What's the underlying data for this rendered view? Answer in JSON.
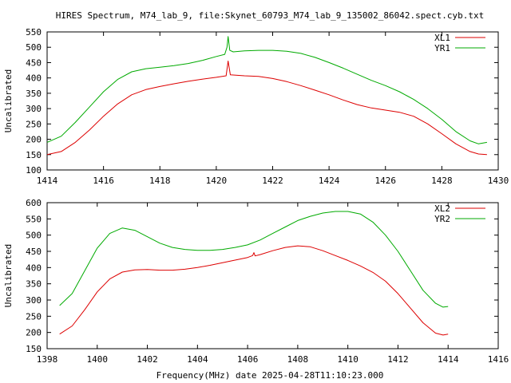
{
  "title": "HIRES Spectrum, M74_lab_9, file:Skynet_60793_M74_lab_9_135002_86042.spect.cyb.txt",
  "xlabel_bottom": "Frequency(MHz) date 2025-04-28T11:10:23.000",
  "colors": {
    "red": "#dd0000",
    "green": "#00aa00",
    "axis": "#000000"
  },
  "chart_data": [
    {
      "type": "line",
      "ylabel": "Uncalibrated",
      "xlim": [
        1414,
        1430
      ],
      "ylim": [
        100,
        550
      ],
      "xticks": [
        1414,
        1416,
        1418,
        1420,
        1422,
        1424,
        1426,
        1428,
        1430
      ],
      "yticks": [
        100,
        150,
        200,
        250,
        300,
        350,
        400,
        450,
        500,
        550
      ],
      "legend": "top-right",
      "series": [
        {
          "name": "XL1",
          "color": "#dd0000",
          "points": [
            [
              1414.0,
              150
            ],
            [
              1414.5,
              160
            ],
            [
              1415.0,
              190
            ],
            [
              1415.5,
              230
            ],
            [
              1416.0,
              275
            ],
            [
              1416.5,
              315
            ],
            [
              1417.0,
              345
            ],
            [
              1417.5,
              362
            ],
            [
              1418.0,
              372
            ],
            [
              1418.5,
              381
            ],
            [
              1419.0,
              389
            ],
            [
              1419.5,
              396
            ],
            [
              1420.0,
              402
            ],
            [
              1420.35,
              407
            ],
            [
              1420.42,
              455
            ],
            [
              1420.5,
              410
            ],
            [
              1421.0,
              407
            ],
            [
              1421.5,
              405
            ],
            [
              1422.0,
              398
            ],
            [
              1422.5,
              388
            ],
            [
              1423.0,
              375
            ],
            [
              1423.5,
              360
            ],
            [
              1424.0,
              345
            ],
            [
              1424.5,
              328
            ],
            [
              1425.0,
              313
            ],
            [
              1425.5,
              302
            ],
            [
              1426.0,
              295
            ],
            [
              1426.5,
              288
            ],
            [
              1427.0,
              275
            ],
            [
              1427.5,
              250
            ],
            [
              1428.0,
              218
            ],
            [
              1428.5,
              185
            ],
            [
              1429.0,
              160
            ],
            [
              1429.3,
              152
            ],
            [
              1429.6,
              150
            ]
          ]
        },
        {
          "name": "YR1",
          "color": "#00aa00",
          "points": [
            [
              1414.0,
              190
            ],
            [
              1414.5,
              210
            ],
            [
              1415.0,
              255
            ],
            [
              1415.5,
              305
            ],
            [
              1416.0,
              355
            ],
            [
              1416.5,
              395
            ],
            [
              1417.0,
              420
            ],
            [
              1417.5,
              430
            ],
            [
              1418.0,
              435
            ],
            [
              1418.5,
              440
            ],
            [
              1419.0,
              447
            ],
            [
              1419.5,
              457
            ],
            [
              1420.0,
              470
            ],
            [
              1420.3,
              477
            ],
            [
              1420.38,
              500
            ],
            [
              1420.42,
              535
            ],
            [
              1420.48,
              490
            ],
            [
              1420.6,
              485
            ],
            [
              1421.0,
              488
            ],
            [
              1421.5,
              490
            ],
            [
              1422.0,
              490
            ],
            [
              1422.5,
              487
            ],
            [
              1423.0,
              480
            ],
            [
              1423.5,
              467
            ],
            [
              1424.0,
              450
            ],
            [
              1424.5,
              432
            ],
            [
              1425.0,
              412
            ],
            [
              1425.5,
              392
            ],
            [
              1426.0,
              375
            ],
            [
              1426.5,
              355
            ],
            [
              1427.0,
              330
            ],
            [
              1427.5,
              300
            ],
            [
              1428.0,
              265
            ],
            [
              1428.5,
              225
            ],
            [
              1429.0,
              195
            ],
            [
              1429.3,
              185
            ],
            [
              1429.6,
              190
            ]
          ]
        }
      ]
    },
    {
      "type": "line",
      "ylabel": "Uncalibrated",
      "xlabel": "Frequency(MHz) date 2025-04-28T11:10:23.000",
      "xlim": [
        1398,
        1416
      ],
      "ylim": [
        150,
        600
      ],
      "xticks": [
        1398,
        1400,
        1402,
        1404,
        1406,
        1408,
        1410,
        1412,
        1414,
        1416
      ],
      "yticks": [
        150,
        200,
        250,
        300,
        350,
        400,
        450,
        500,
        550,
        600
      ],
      "legend": "top-right",
      "series": [
        {
          "name": "XL2",
          "color": "#dd0000",
          "points": [
            [
              1398.5,
              195
            ],
            [
              1399.0,
              220
            ],
            [
              1399.5,
              270
            ],
            [
              1400.0,
              325
            ],
            [
              1400.5,
              365
            ],
            [
              1401.0,
              386
            ],
            [
              1401.5,
              393
            ],
            [
              1402.0,
              394
            ],
            [
              1402.5,
              392
            ],
            [
              1403.0,
              392
            ],
            [
              1403.5,
              395
            ],
            [
              1404.0,
              400
            ],
            [
              1404.5,
              407
            ],
            [
              1405.0,
              415
            ],
            [
              1405.5,
              423
            ],
            [
              1406.0,
              431
            ],
            [
              1406.2,
              437
            ],
            [
              1406.25,
              446
            ],
            [
              1406.3,
              436
            ],
            [
              1406.5,
              440
            ],
            [
              1407.0,
              452
            ],
            [
              1407.5,
              462
            ],
            [
              1408.0,
              467
            ],
            [
              1408.5,
              464
            ],
            [
              1409.0,
              452
            ],
            [
              1409.5,
              437
            ],
            [
              1410.0,
              422
            ],
            [
              1410.5,
              405
            ],
            [
              1411.0,
              385
            ],
            [
              1411.5,
              358
            ],
            [
              1412.0,
              320
            ],
            [
              1412.5,
              275
            ],
            [
              1413.0,
              230
            ],
            [
              1413.5,
              198
            ],
            [
              1413.8,
              192
            ],
            [
              1414.0,
              195
            ]
          ]
        },
        {
          "name": "YR2",
          "color": "#00aa00",
          "points": [
            [
              1398.5,
              283
            ],
            [
              1399.0,
              320
            ],
            [
              1399.5,
              390
            ],
            [
              1400.0,
              460
            ],
            [
              1400.5,
              505
            ],
            [
              1401.0,
              522
            ],
            [
              1401.5,
              515
            ],
            [
              1402.0,
              495
            ],
            [
              1402.5,
              475
            ],
            [
              1403.0,
              462
            ],
            [
              1403.5,
              456
            ],
            [
              1404.0,
              453
            ],
            [
              1404.5,
              453
            ],
            [
              1405.0,
              456
            ],
            [
              1405.5,
              462
            ],
            [
              1406.0,
              470
            ],
            [
              1406.5,
              485
            ],
            [
              1407.0,
              505
            ],
            [
              1407.5,
              525
            ],
            [
              1408.0,
              545
            ],
            [
              1408.5,
              558
            ],
            [
              1409.0,
              568
            ],
            [
              1409.5,
              573
            ],
            [
              1410.0,
              573
            ],
            [
              1410.5,
              565
            ],
            [
              1411.0,
              540
            ],
            [
              1411.5,
              500
            ],
            [
              1412.0,
              450
            ],
            [
              1412.5,
              390
            ],
            [
              1413.0,
              330
            ],
            [
              1413.5,
              290
            ],
            [
              1413.8,
              278
            ],
            [
              1414.0,
              280
            ]
          ]
        }
      ]
    }
  ]
}
